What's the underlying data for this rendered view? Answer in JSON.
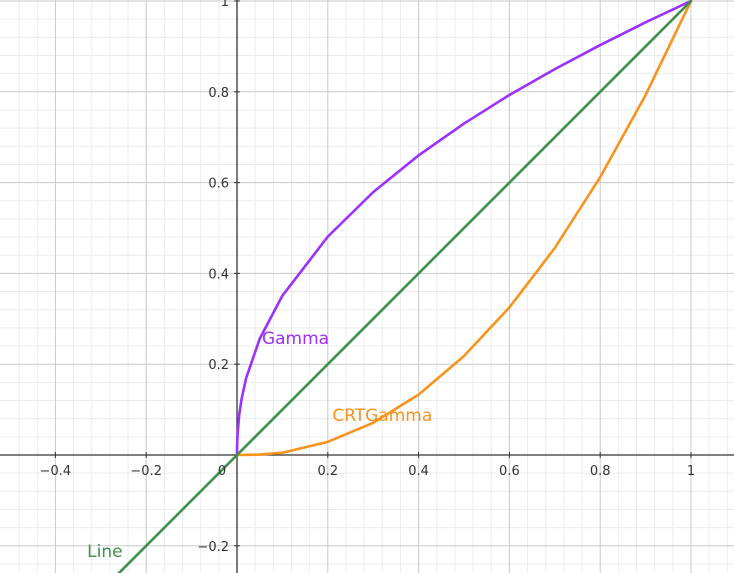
{
  "chart_data": {
    "type": "line",
    "title": "",
    "xlabel": "",
    "ylabel": "",
    "xlim": [
      -0.5,
      1.1
    ],
    "ylim": [
      -0.26,
      1.0
    ],
    "grid": true,
    "x_ticks": [
      "−0.4",
      "−0.2",
      "0",
      "0.2",
      "0.4",
      "0.6",
      "0.8",
      "1"
    ],
    "x_tick_values": [
      -0.4,
      -0.2,
      0,
      0.2,
      0.4,
      0.6,
      0.8,
      1
    ],
    "y_ticks": [
      "−0.2",
      "0.2",
      "0.4",
      "0.6",
      "0.8",
      "1"
    ],
    "y_tick_values": [
      -0.2,
      0.2,
      0.4,
      0.6,
      0.8,
      1
    ],
    "series": [
      {
        "name": "Gamma",
        "color": "#9b30ff",
        "x": [
          0,
          0.0001,
          0.001,
          0.005,
          0.01,
          0.02,
          0.05,
          0.1,
          0.2,
          0.3,
          0.4,
          0.5,
          0.6,
          0.7,
          0.8,
          0.9,
          1.0
        ],
        "y": [
          0,
          0.015,
          0.043,
          0.09,
          0.123,
          0.169,
          0.256,
          0.351,
          0.481,
          0.579,
          0.66,
          0.73,
          0.793,
          0.85,
          0.903,
          0.953,
          1.0
        ]
      },
      {
        "name": "CRTGamma",
        "color": "#f7941d",
        "x": [
          0,
          0.05,
          0.1,
          0.2,
          0.3,
          0.4,
          0.5,
          0.6,
          0.7,
          0.8,
          0.9,
          1.0
        ],
        "y": [
          0,
          0.001,
          0.005,
          0.029,
          0.071,
          0.133,
          0.218,
          0.325,
          0.456,
          0.612,
          0.793,
          1.0
        ]
      },
      {
        "name": "Line",
        "color": "#3d8f4a",
        "x": [
          -0.3,
          1.0
        ],
        "y": [
          -0.3,
          1.0
        ]
      }
    ],
    "labels": [
      {
        "text": "Gamma",
        "color": "#9b30ff",
        "x": 0.055,
        "y": 0.245
      },
      {
        "text": "CRTGamma",
        "color": "#f7941d",
        "x": 0.21,
        "y": 0.075
      },
      {
        "text": "Line",
        "color": "#3d8f4a",
        "x": -0.33,
        "y": -0.225
      }
    ]
  }
}
